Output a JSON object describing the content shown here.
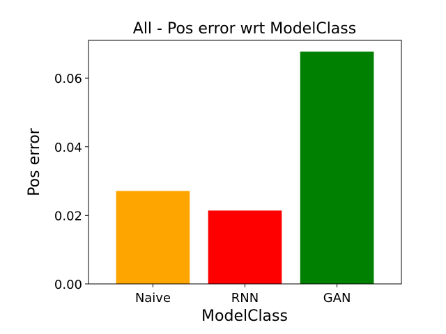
{
  "chart_data": {
    "type": "bar",
    "title": "All - Pos error wrt ModelClass",
    "xlabel": "ModelClass",
    "ylabel": "Pos error",
    "categories": [
      "Naive",
      "RNN",
      "GAN"
    ],
    "values": [
      0.0271,
      0.0214,
      0.0677
    ],
    "colors": [
      "#ffa500",
      "#ff0000",
      "#008000"
    ],
    "ylim": [
      0,
      0.071
    ],
    "yticks": [
      0,
      0.02,
      0.04,
      0.06
    ],
    "ytick_labels": [
      "0.00",
      "0.02",
      "0.04",
      "0.06"
    ],
    "grid": false,
    "legend": "none"
  }
}
